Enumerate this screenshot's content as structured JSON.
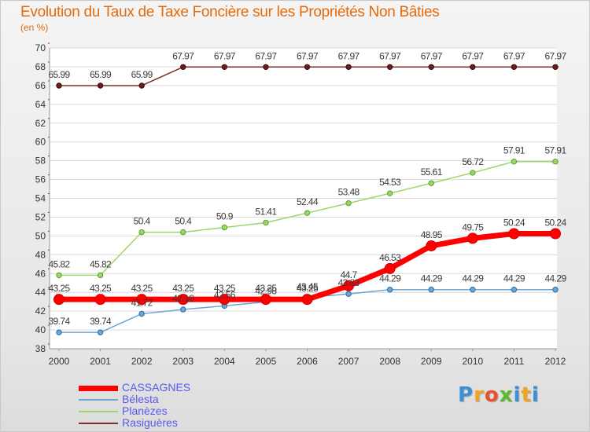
{
  "title": "Evolution du Taux de Taxe Foncière sur les Propriétés Non Bâties",
  "unit_label": "(en %)",
  "logo": {
    "letters": [
      "P",
      "r",
      "o",
      "x",
      "i",
      "t",
      "i"
    ],
    "colors": [
      "#3a8fd6",
      "#f7a21b",
      "#e9512a",
      "#5bb832",
      "#3a8fd6",
      "#f7a21b",
      "#3a8fd6"
    ]
  },
  "chart_data": {
    "type": "line",
    "title": "Evolution du Taux de Taxe Foncière sur les Propriétés Non Bâties",
    "ylabel": "(en %)",
    "x": [
      "2000",
      "2001",
      "2002",
      "2003",
      "2004",
      "2005",
      "2006",
      "2007",
      "2008",
      "2009",
      "2010",
      "2011",
      "2012"
    ],
    "ylim": [
      38,
      70
    ],
    "yticks": [
      38,
      40,
      42,
      44,
      46,
      48,
      50,
      52,
      54,
      56,
      58,
      60,
      62,
      64,
      66,
      68,
      70
    ],
    "grid": "horizontal",
    "legend": "bottom-left",
    "series": [
      {
        "name": "Rasiguères",
        "color": "#7b2e2e",
        "values": [
          65.99,
          65.99,
          65.99,
          67.97,
          67.97,
          67.97,
          67.97,
          67.97,
          67.97,
          67.97,
          67.97,
          67.97,
          67.97
        ],
        "labels": [
          "65.99",
          "65.99",
          "65.99",
          "67.97",
          "67.97",
          "67.97",
          "67.97",
          "67.97",
          "67.97",
          "67.97",
          "67.97",
          "67.97",
          "67.97"
        ]
      },
      {
        "name": "Planèzes",
        "color": "#9bd66b",
        "values": [
          45.82,
          45.82,
          50.4,
          50.4,
          50.9,
          51.41,
          52.44,
          53.48,
          54.53,
          55.61,
          56.72,
          57.91,
          57.91
        ],
        "labels": [
          "45.82",
          "45.82",
          "50.4",
          "50.4",
          "50.9",
          "51.41",
          "52.44",
          "53.48",
          "54.53",
          "55.61",
          "56.72",
          "57.91",
          "57.91"
        ]
      },
      {
        "name": "Bélesta",
        "color": "#6aa6d6",
        "values": [
          39.74,
          39.74,
          41.72,
          42.18,
          42.56,
          42.98,
          43.45,
          43.83,
          44.29,
          44.29,
          44.29,
          44.29,
          44.29
        ],
        "labels": [
          "39.74",
          "39.74",
          "41.72",
          "42.18",
          "42.56",
          "42.98",
          "43.45",
          "43.83",
          "44.29",
          "44.29",
          "44.29",
          "44.29",
          "44.29"
        ]
      },
      {
        "name": "CASSAGNES",
        "color": "#ff0000",
        "values": [
          43.25,
          43.25,
          43.25,
          43.25,
          43.25,
          43.25,
          43.25,
          44.7,
          46.53,
          48.95,
          49.75,
          50.24,
          50.24
        ],
        "labels": [
          "43.25",
          "43.25",
          "43.25",
          "43.25",
          "43.25",
          "43.25",
          "43.25",
          "44.7",
          "46.53",
          "48.95",
          "49.75",
          "50.24",
          "50.24"
        ]
      }
    ],
    "legend_entries": [
      "CASSAGNES",
      "Bélesta",
      "Planèzes",
      "Rasiguères"
    ]
  }
}
